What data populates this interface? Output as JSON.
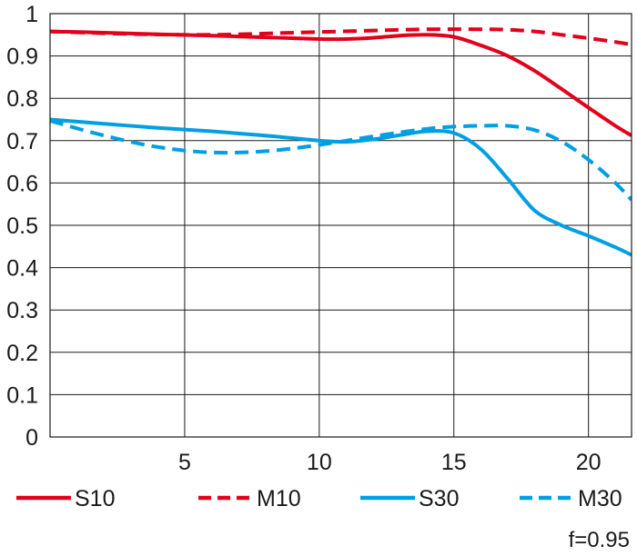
{
  "chart_data": {
    "type": "line",
    "xlim": [
      0,
      21.6
    ],
    "ylim": [
      0,
      1
    ],
    "x_ticks": [
      5,
      10,
      15,
      20
    ],
    "y_ticks": [
      0,
      0.1,
      0.2,
      0.3,
      0.4,
      0.5,
      0.6,
      0.7,
      0.8,
      0.9,
      1
    ],
    "grid": true,
    "legend_position": "bottom",
    "annotation": "f=0.95",
    "series": [
      {
        "name": "S10",
        "color": "#e2001a",
        "dash": "solid",
        "points": [
          [
            0,
            0.958
          ],
          [
            2,
            0.955
          ],
          [
            4,
            0.951
          ],
          [
            6,
            0.948
          ],
          [
            8,
            0.944
          ],
          [
            10,
            0.94
          ],
          [
            11,
            0.94
          ],
          [
            12,
            0.943
          ],
          [
            13,
            0.948
          ],
          [
            14,
            0.95
          ],
          [
            15,
            0.945
          ],
          [
            16,
            0.925
          ],
          [
            17,
            0.9
          ],
          [
            18,
            0.865
          ],
          [
            19,
            0.822
          ],
          [
            20,
            0.778
          ],
          [
            21,
            0.735
          ],
          [
            21.6,
            0.712
          ]
        ]
      },
      {
        "name": "M10",
        "color": "#e2001a",
        "dash": "dashed",
        "points": [
          [
            0,
            0.958
          ],
          [
            3,
            0.952
          ],
          [
            6,
            0.95
          ],
          [
            9,
            0.955
          ],
          [
            12,
            0.96
          ],
          [
            14,
            0.963
          ],
          [
            16,
            0.963
          ],
          [
            17,
            0.962
          ],
          [
            18,
            0.958
          ],
          [
            19,
            0.95
          ],
          [
            20,
            0.942
          ],
          [
            21,
            0.933
          ],
          [
            21.6,
            0.927
          ]
        ]
      },
      {
        "name": "S30",
        "color": "#009fe3",
        "dash": "solid",
        "points": [
          [
            0,
            0.75
          ],
          [
            2,
            0.74
          ],
          [
            4,
            0.73
          ],
          [
            6,
            0.722
          ],
          [
            8,
            0.712
          ],
          [
            10,
            0.7
          ],
          [
            11,
            0.697
          ],
          [
            12,
            0.703
          ],
          [
            13,
            0.713
          ],
          [
            14,
            0.722
          ],
          [
            15,
            0.718
          ],
          [
            16,
            0.68
          ],
          [
            17,
            0.61
          ],
          [
            18,
            0.535
          ],
          [
            19,
            0.5
          ],
          [
            20,
            0.475
          ],
          [
            21,
            0.448
          ],
          [
            21.6,
            0.43
          ]
        ]
      },
      {
        "name": "M30",
        "color": "#009fe3",
        "dash": "dashed",
        "points": [
          [
            0,
            0.747
          ],
          [
            2,
            0.712
          ],
          [
            4,
            0.685
          ],
          [
            6,
            0.672
          ],
          [
            8,
            0.675
          ],
          [
            10,
            0.69
          ],
          [
            12,
            0.71
          ],
          [
            14,
            0.728
          ],
          [
            15,
            0.733
          ],
          [
            16,
            0.735
          ],
          [
            17,
            0.735
          ],
          [
            18,
            0.725
          ],
          [
            19,
            0.698
          ],
          [
            20,
            0.655
          ],
          [
            21,
            0.6
          ],
          [
            21.6,
            0.56
          ]
        ]
      }
    ]
  }
}
